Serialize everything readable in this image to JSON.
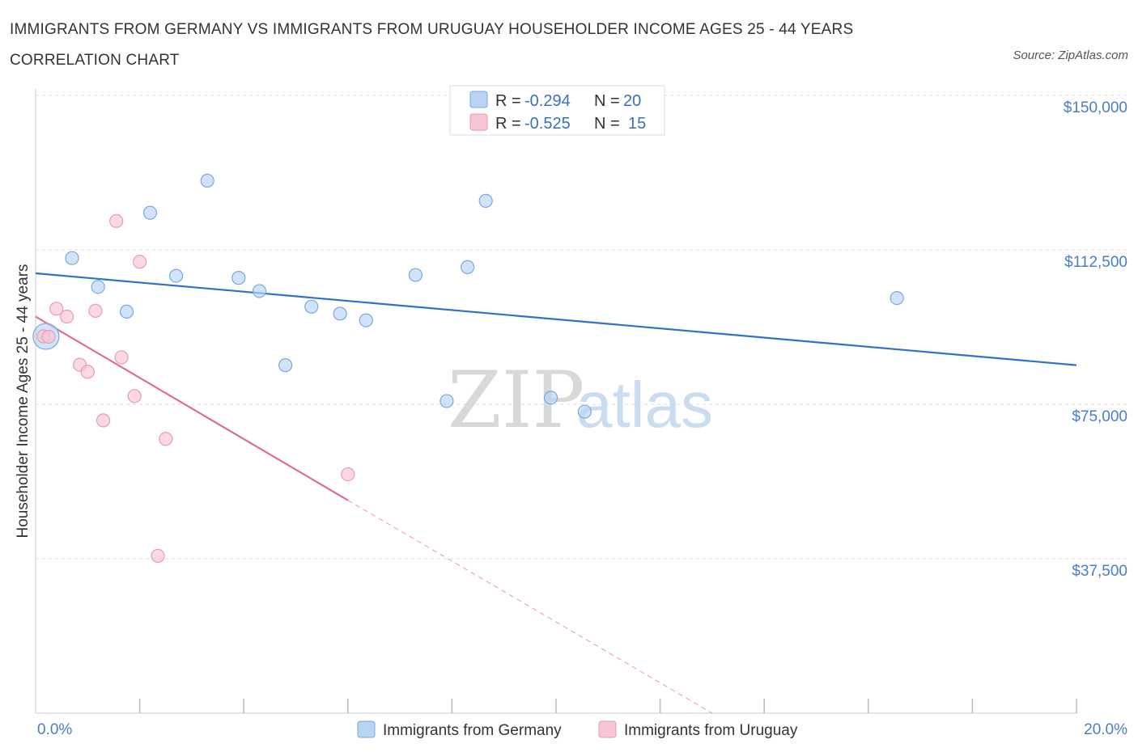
{
  "title": "IMMIGRANTS FROM GERMANY VS IMMIGRANTS FROM URUGUAY HOUSEHOLDER INCOME AGES 25 - 44 YEARS CORRELATION CHART",
  "source": "Source: ZipAtlas.com",
  "watermark": {
    "zip": "ZIP",
    "atlas": "atlas"
  },
  "colors": {
    "germany_fill": "#b8d4f5",
    "germany_stroke": "#7aa8e0",
    "germany_line": "#2f72c8",
    "uruguay_fill": "#f7c5d4",
    "uruguay_stroke": "#e99ab4",
    "uruguay_line": "#e06b97",
    "grid": "#dddddd",
    "tick_label": "#4a7cc9"
  },
  "legend": {
    "rows": [
      {
        "r_label": "R = ",
        "r_value": "-0.294",
        "n_label": "N = ",
        "n_value": "20"
      },
      {
        "r_label": "R = ",
        "r_value": "-0.525",
        "n_label": "N = ",
        "n_value": "15"
      }
    ]
  },
  "chart_data": {
    "type": "scatter",
    "title": "IMMIGRANTS FROM GERMANY VS IMMIGRANTS FROM URUGUAY HOUSEHOLDER INCOME AGES 25 - 44 YEARS CORRELATION CHART",
    "xlabel": "",
    "ylabel": "Householder Income Ages 25 - 44 years",
    "xlim": [
      0,
      20
    ],
    "ylim": [
      0,
      150000
    ],
    "x_tick_labels": [
      "0.0%",
      "20.0%"
    ],
    "y_ticks": [
      37500,
      75000,
      112500,
      150000
    ],
    "y_tick_labels": [
      "$37,500",
      "$75,000",
      "$112,500",
      "$150,000"
    ],
    "grid": true,
    "legend_position": "top-center",
    "series": [
      {
        "name": "Immigrants from Germany",
        "R": -0.294,
        "N": 20,
        "points": [
          {
            "x": 0.2,
            "y": 91500,
            "big": true
          },
          {
            "x": 0.7,
            "y": 110500
          },
          {
            "x": 1.2,
            "y": 103500
          },
          {
            "x": 1.75,
            "y": 97500
          },
          {
            "x": 2.2,
            "y": 121500
          },
          {
            "x": 2.7,
            "y": 106200
          },
          {
            "x": 3.3,
            "y": 129300
          },
          {
            "x": 3.9,
            "y": 105700
          },
          {
            "x": 4.3,
            "y": 102500
          },
          {
            "x": 4.8,
            "y": 84500
          },
          {
            "x": 5.3,
            "y": 98700
          },
          {
            "x": 5.85,
            "y": 97000
          },
          {
            "x": 6.35,
            "y": 95400
          },
          {
            "x": 7.3,
            "y": 106400
          },
          {
            "x": 7.9,
            "y": 75800
          },
          {
            "x": 8.3,
            "y": 108300
          },
          {
            "x": 8.65,
            "y": 124400
          },
          {
            "x": 9.9,
            "y": 76600
          },
          {
            "x": 10.55,
            "y": 73200
          },
          {
            "x": 16.55,
            "y": 100800
          }
        ],
        "trend": {
          "x0": 0,
          "y0": 106800,
          "x1": 20,
          "y1": 84500
        }
      },
      {
        "name": "Immigrants from Uruguay",
        "R": -0.525,
        "N": 15,
        "points": [
          {
            "x": 0.15,
            "y": 91500
          },
          {
            "x": 0.25,
            "y": 91400
          },
          {
            "x": 0.4,
            "y": 98200
          },
          {
            "x": 0.6,
            "y": 96300
          },
          {
            "x": 0.85,
            "y": 84600
          },
          {
            "x": 1.0,
            "y": 82900
          },
          {
            "x": 1.15,
            "y": 97700
          },
          {
            "x": 1.3,
            "y": 71100
          },
          {
            "x": 1.55,
            "y": 119500
          },
          {
            "x": 1.65,
            "y": 86400
          },
          {
            "x": 1.9,
            "y": 77000
          },
          {
            "x": 2.0,
            "y": 109600
          },
          {
            "x": 2.5,
            "y": 66600
          },
          {
            "x": 2.35,
            "y": 38200
          },
          {
            "x": 6.0,
            "y": 58000
          }
        ],
        "trend": {
          "x0": 0,
          "y0": 96300,
          "x1": 6.0,
          "y1": 51700
        },
        "trend_dashed": {
          "x0": 6.0,
          "y0": 51700,
          "x1": 13.0,
          "y1": 0
        }
      }
    ]
  },
  "bottom_legend": {
    "items": [
      {
        "label": "Immigrants from Germany"
      },
      {
        "label": "Immigrants from Uruguay"
      }
    ]
  }
}
